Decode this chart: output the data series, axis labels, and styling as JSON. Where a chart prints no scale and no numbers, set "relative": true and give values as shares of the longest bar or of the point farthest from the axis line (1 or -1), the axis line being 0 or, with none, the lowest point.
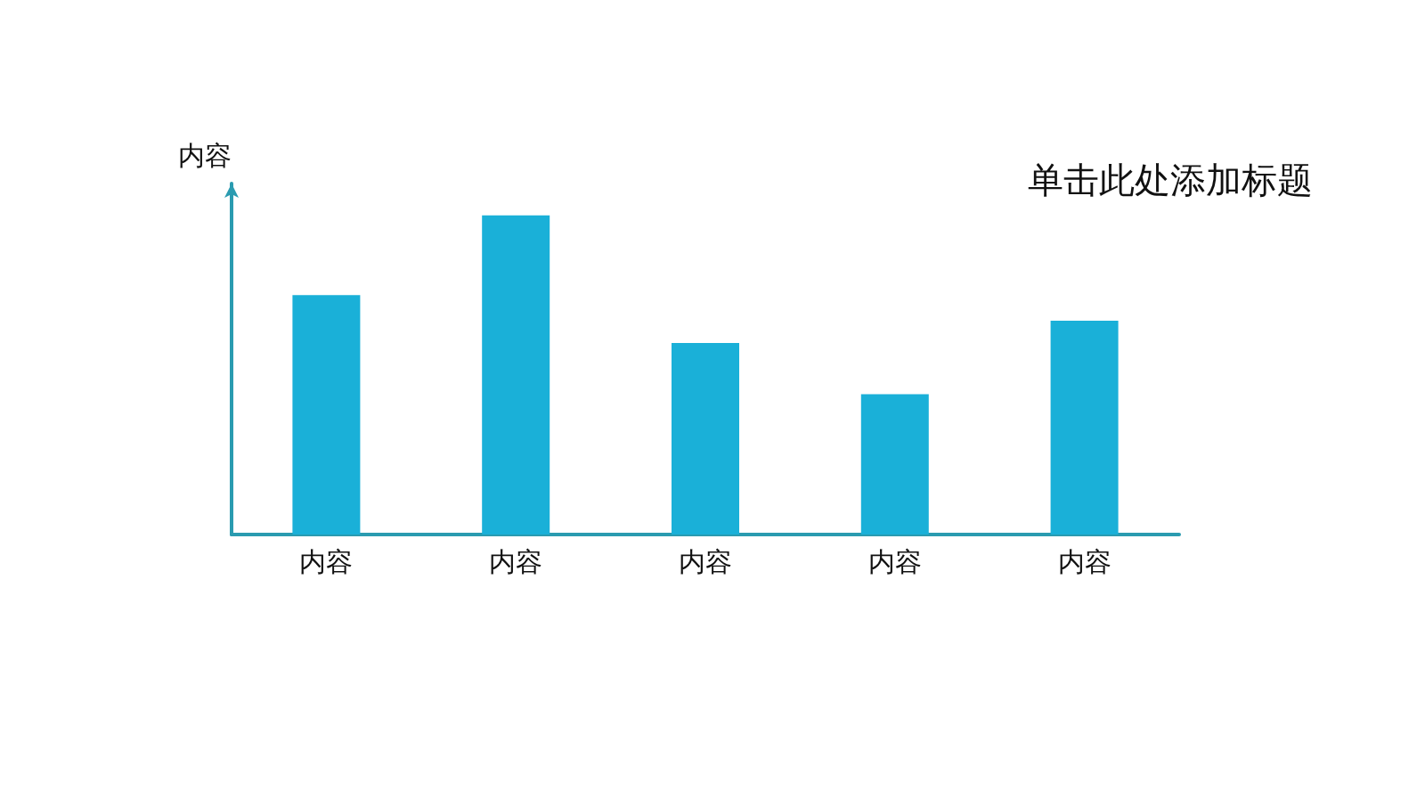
{
  "chart_data": {
    "type": "bar",
    "title": "单击此处添加标题",
    "ylabel": "内容",
    "categories": [
      "内容",
      "内容",
      "内容",
      "内容",
      "内容"
    ],
    "values": [
      0.75,
      1,
      0.6,
      0.44,
      0.67
    ],
    "color": "#1ab0d8",
    "relative": true,
    "grid": false
  }
}
